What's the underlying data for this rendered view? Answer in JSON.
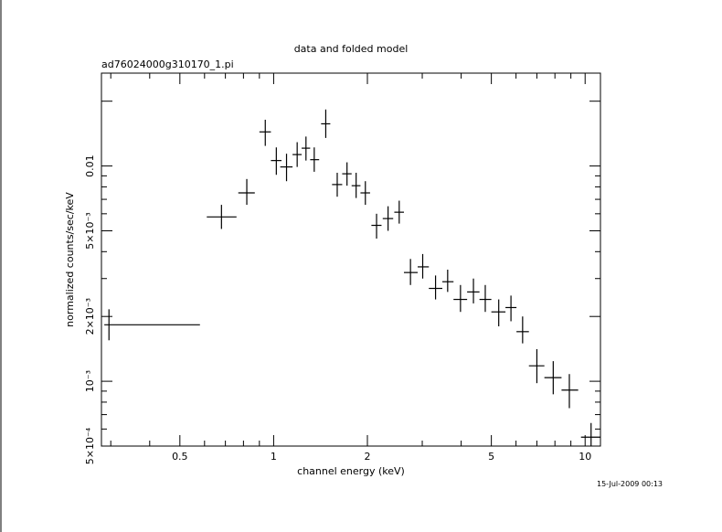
{
  "title": "data and folded model",
  "file_label": "ad76024000g310170_1.pi",
  "timestamp": "15-Jul-2009 00:13",
  "chart_data": {
    "type": "scatter",
    "title": "data and folded model",
    "xlabel": "channel energy (keV)",
    "ylabel": "normalized counts/sec/keV",
    "x_scale": "log",
    "y_scale": "log",
    "xlim": [
      0.28,
      11.2
    ],
    "ylim": [
      0.0005,
      0.027
    ],
    "grid": false,
    "x_ticks": [
      {
        "value": 0.5,
        "label": "0.5"
      },
      {
        "value": 1,
        "label": "1"
      },
      {
        "value": 2,
        "label": "2"
      },
      {
        "value": 5,
        "label": "5"
      },
      {
        "value": 10,
        "label": "10"
      }
    ],
    "y_ticks": [
      {
        "value": 0.0005,
        "label": "5×10⁻⁴"
      },
      {
        "value": 0.001,
        "label": "10⁻³"
      },
      {
        "value": 0.002,
        "label": "2×10⁻³"
      },
      {
        "value": 0.005,
        "label": "5×10⁻³"
      },
      {
        "value": 0.01,
        "label": "0.01"
      }
    ],
    "points": [
      {
        "x": 0.296,
        "y": 0.00183,
        "xlo": 0.286,
        "xhi": 0.58,
        "ylo": 0.00155,
        "yhi": 0.00216
      },
      {
        "x": 0.68,
        "y": 0.0058,
        "xlo": 0.61,
        "xhi": 0.76,
        "ylo": 0.0051,
        "yhi": 0.0066
      },
      {
        "x": 0.82,
        "y": 0.0075,
        "xlo": 0.77,
        "xhi": 0.87,
        "ylo": 0.0066,
        "yhi": 0.0087
      },
      {
        "x": 0.94,
        "y": 0.0144,
        "xlo": 0.9,
        "xhi": 0.98,
        "ylo": 0.0124,
        "yhi": 0.0164
      },
      {
        "x": 1.02,
        "y": 0.0106,
        "xlo": 0.98,
        "xhi": 1.06,
        "ylo": 0.0091,
        "yhi": 0.0122
      },
      {
        "x": 1.1,
        "y": 0.0099,
        "xlo": 1.05,
        "xhi": 1.15,
        "ylo": 0.0085,
        "yhi": 0.0114
      },
      {
        "x": 1.19,
        "y": 0.0113,
        "xlo": 1.15,
        "xhi": 1.23,
        "ylo": 0.0099,
        "yhi": 0.0129
      },
      {
        "x": 1.27,
        "y": 0.0121,
        "xlo": 1.23,
        "xhi": 1.31,
        "ylo": 0.0106,
        "yhi": 0.0137
      },
      {
        "x": 1.35,
        "y": 0.0107,
        "xlo": 1.31,
        "xhi": 1.4,
        "ylo": 0.0094,
        "yhi": 0.0122
      },
      {
        "x": 1.47,
        "y": 0.0157,
        "xlo": 1.42,
        "xhi": 1.52,
        "ylo": 0.0135,
        "yhi": 0.0183
      },
      {
        "x": 1.6,
        "y": 0.0082,
        "xlo": 1.54,
        "xhi": 1.66,
        "ylo": 0.0072,
        "yhi": 0.0093
      },
      {
        "x": 1.72,
        "y": 0.0092,
        "xlo": 1.66,
        "xhi": 1.78,
        "ylo": 0.0081,
        "yhi": 0.0104
      },
      {
        "x": 1.84,
        "y": 0.0081,
        "xlo": 1.78,
        "xhi": 1.9,
        "ylo": 0.0071,
        "yhi": 0.0093
      },
      {
        "x": 1.97,
        "y": 0.0075,
        "xlo": 1.9,
        "xhi": 2.04,
        "ylo": 0.0066,
        "yhi": 0.0085
      },
      {
        "x": 2.14,
        "y": 0.0053,
        "xlo": 2.06,
        "xhi": 2.22,
        "ylo": 0.0046,
        "yhi": 0.006
      },
      {
        "x": 2.33,
        "y": 0.0057,
        "xlo": 2.24,
        "xhi": 2.42,
        "ylo": 0.005,
        "yhi": 0.0065
      },
      {
        "x": 2.53,
        "y": 0.0061,
        "xlo": 2.44,
        "xhi": 2.62,
        "ylo": 0.0054,
        "yhi": 0.0069
      },
      {
        "x": 2.75,
        "y": 0.0032,
        "xlo": 2.62,
        "xhi": 2.9,
        "ylo": 0.0028,
        "yhi": 0.0037
      },
      {
        "x": 3.01,
        "y": 0.0034,
        "xlo": 2.9,
        "xhi": 3.15,
        "ylo": 0.003,
        "yhi": 0.0039
      },
      {
        "x": 3.31,
        "y": 0.0027,
        "xlo": 3.15,
        "xhi": 3.48,
        "ylo": 0.0024,
        "yhi": 0.0031
      },
      {
        "x": 3.62,
        "y": 0.0029,
        "xlo": 3.48,
        "xhi": 3.78,
        "ylo": 0.0026,
        "yhi": 0.0033
      },
      {
        "x": 3.98,
        "y": 0.0024,
        "xlo": 3.78,
        "xhi": 4.18,
        "ylo": 0.0021,
        "yhi": 0.0028
      },
      {
        "x": 4.38,
        "y": 0.0026,
        "xlo": 4.18,
        "xhi": 4.58,
        "ylo": 0.0023,
        "yhi": 0.003
      },
      {
        "x": 4.78,
        "y": 0.0024,
        "xlo": 4.58,
        "xhi": 5.0,
        "ylo": 0.0021,
        "yhi": 0.0028
      },
      {
        "x": 5.28,
        "y": 0.0021,
        "xlo": 5.0,
        "xhi": 5.55,
        "ylo": 0.0018,
        "yhi": 0.0024
      },
      {
        "x": 5.78,
        "y": 0.0022,
        "xlo": 5.55,
        "xhi": 6.02,
        "ylo": 0.0019,
        "yhi": 0.0025
      },
      {
        "x": 6.3,
        "y": 0.0017,
        "xlo": 6.02,
        "xhi": 6.6,
        "ylo": 0.0015,
        "yhi": 0.002
      },
      {
        "x": 7.0,
        "y": 0.00118,
        "xlo": 6.6,
        "xhi": 7.4,
        "ylo": 0.00098,
        "yhi": 0.00141
      },
      {
        "x": 7.9,
        "y": 0.00104,
        "xlo": 7.4,
        "xhi": 8.4,
        "ylo": 0.00087,
        "yhi": 0.00124
      },
      {
        "x": 8.9,
        "y": 0.00091,
        "xlo": 8.4,
        "xhi": 9.5,
        "ylo": 0.00075,
        "yhi": 0.00108
      },
      {
        "x": 10.45,
        "y": 0.00055,
        "xlo": 9.7,
        "xhi": 11.2,
        "ylo": 0.0005,
        "yhi": 0.00064
      }
    ]
  }
}
